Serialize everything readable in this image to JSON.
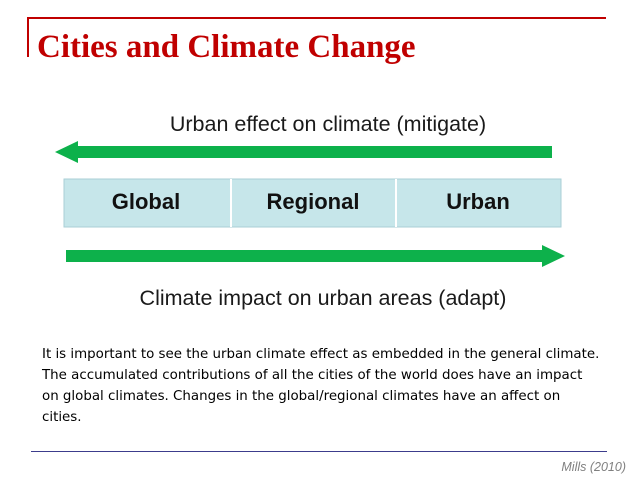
{
  "slide": {
    "title": "Cities and Climate Change",
    "citation": "Mills (2010)",
    "caption": "It is important to see the urban climate effect as embedded in the general climate. The accumulated contributions of all the cities of the world does have an impact on global climates. Changes in the global/regional climates have an affect on cities."
  },
  "diagram": {
    "top_arrow_label": "Urban effect on climate (mitigate)",
    "bottom_arrow_label": "Climate impact on urban areas (adapt)",
    "scales": [
      "Global",
      "Regional",
      "Urban"
    ],
    "colors": {
      "arrow": "#0db14b",
      "band": "#c6e6ea",
      "band_border": "#aacfd6",
      "title": "#c00000"
    }
  }
}
